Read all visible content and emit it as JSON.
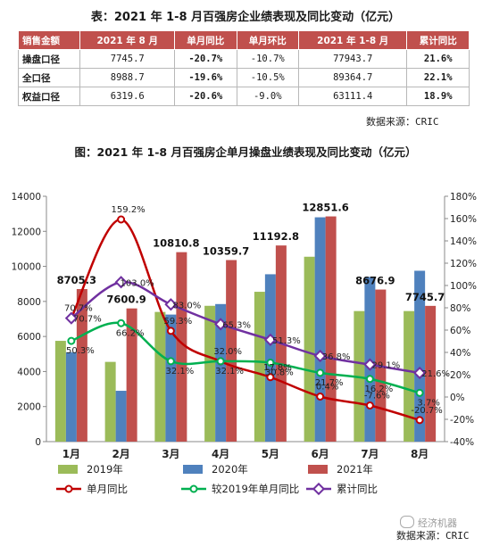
{
  "table": {
    "title": "表：2021 年 1-8 月百强房企业绩表现及同比变动（亿元）",
    "headers": [
      "销售金额",
      "2021 年 8 月",
      "单月同比",
      "单月环比",
      "2021 年 1-8 月",
      "累计同比"
    ],
    "rows": [
      [
        "操盘口径",
        "7745.7",
        "-20.7%",
        "-10.7%",
        "77943.7",
        "21.6%"
      ],
      [
        "全口径",
        "8988.7",
        "-19.6%",
        "-10.5%",
        "89364.7",
        "22.1%"
      ],
      [
        "权益口径",
        "6319.6",
        "-20.6%",
        "-9.0%",
        "63111.4",
        "18.9%"
      ]
    ]
  },
  "table_source": "数据来源：CRIC",
  "chart_title": "图：2021 年 1-8 月百强房企单月操盘业绩表现及同比变动（亿元）",
  "chart_source": "数据来源：CRIC",
  "watermark": "经济机器",
  "colors": {
    "header_red": "#c0504d",
    "bar_2019": "#9bbb59",
    "bar_2020": "#4f81bd",
    "bar_2021": "#c0504d",
    "line_single_yoy": "#c00000",
    "line_vs_2019": "#00b050",
    "line_cumulative": "#7030a0"
  },
  "chart_data": {
    "type": "bar",
    "categories": [
      "1月",
      "2月",
      "3月",
      "4月",
      "5月",
      "6月",
      "7月",
      "8月"
    ],
    "y_left": {
      "ylim": [
        0,
        14000
      ],
      "ticks": [
        "0",
        "2000",
        "4000",
        "6000",
        "8000",
        "10000",
        "12000",
        "14000"
      ]
    },
    "y_right": {
      "ylim": [
        -40,
        180
      ],
      "ticks": [
        "-40%",
        "-20%",
        "0%",
        "20%",
        "40%",
        "60%",
        "80%",
        "100%",
        "120%",
        "140%",
        "160%",
        "180%"
      ]
    },
    "bar_series": [
      {
        "name": "2019年",
        "values": [
          5750,
          4550,
          7400,
          7750,
          8550,
          10550,
          7450,
          7450
        ]
      },
      {
        "name": "2020年",
        "values": [
          5100,
          2900,
          7250,
          7850,
          9550,
          12800,
          9400,
          9750
        ]
      },
      {
        "name": "2021年",
        "values": [
          8705.3,
          7600.9,
          10810.8,
          10359.7,
          11192.8,
          12851.6,
          8676.9,
          7745.7
        ]
      }
    ],
    "bar_labels": [
      "8705.3",
      "7600.9",
      "10810.8",
      "10359.7",
      "11192.8",
      "12851.6",
      "8676.9",
      "7745.7"
    ],
    "line_series": [
      {
        "name": "单月同比",
        "values": [
          70.7,
          159.2,
          59.3,
          32.0,
          17.8,
          0.4,
          -7.6,
          -20.7
        ],
        "labels": [
          "70.7%",
          "159.2%",
          "59.3%",
          "32.0%",
          "17.8%",
          "0.4%",
          "-7.6%",
          "-20.7%"
        ]
      },
      {
        "name": "较2019年单月同比",
        "values": [
          50.3,
          66.2,
          32.1,
          32.1,
          30.8,
          21.7,
          16.2,
          3.7
        ],
        "labels": [
          "50.3%",
          "66.2%",
          "32.1%",
          "32.1%",
          "30.8%",
          "21.7%",
          "16.2%",
          "3.7%"
        ]
      },
      {
        "name": "累计同比",
        "values": [
          70.7,
          103.0,
          83.0,
          65.3,
          51.3,
          36.8,
          29.1,
          21.6
        ],
        "labels": [
          "70.7%",
          "103.0%",
          "83.0%",
          "65.3%",
          "51.3%",
          "36.8%",
          "29.1%",
          "21.6%"
        ]
      }
    ],
    "legend": [
      "2019年",
      "2020年",
      "2021年",
      "单月同比",
      "较2019年单月同比",
      "累计同比"
    ]
  }
}
